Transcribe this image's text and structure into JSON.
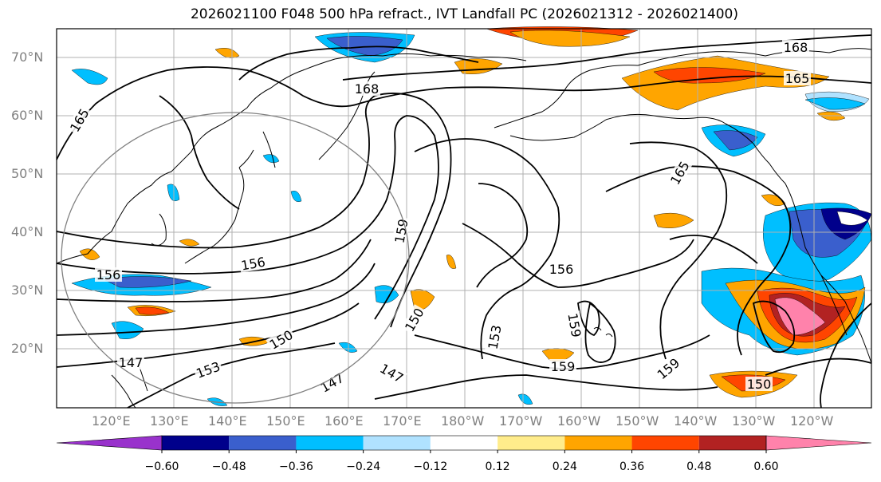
{
  "title": "2026021100 F048 500 hPa refract., IVT Landfall PC (2026021312 - 2026021400)",
  "latitude_labels": [
    "70°N",
    "60°N",
    "50°N",
    "40°N",
    "30°N",
    "20°N"
  ],
  "longitude_labels": [
    "120°E",
    "130°E",
    "140°E",
    "150°E",
    "160°E",
    "170°E",
    "180°W",
    "170°W",
    "160°W",
    "150°W",
    "140°W",
    "130°W",
    "120°W"
  ],
  "contour_labels": [
    "168",
    "168",
    "165",
    "165",
    "165",
    "159",
    "159",
    "156",
    "156",
    "156",
    "153",
    "153",
    "150",
    "150",
    "150",
    "147",
    "147",
    "147",
    "159",
    "159"
  ],
  "colorbar": {
    "ticks": [
      "−0.60",
      "−0.48",
      "−0.36",
      "−0.24",
      "−0.12",
      "0.12",
      "0.24",
      "0.36",
      "0.48",
      "0.60"
    ],
    "colors": [
      "#9932cc",
      "#00008b",
      "#3a5fcd",
      "#00bfff",
      "#b0e2ff",
      "#ffffff",
      "#ffec8b",
      "#ffa500",
      "#ff4500",
      "#b22222",
      "#ff82ab"
    ]
  },
  "colors": {
    "contour": "#000000",
    "coastline": "#000000",
    "grid": "#b0b0b0",
    "frame": "#000000",
    "axis_label": "#808080"
  }
}
